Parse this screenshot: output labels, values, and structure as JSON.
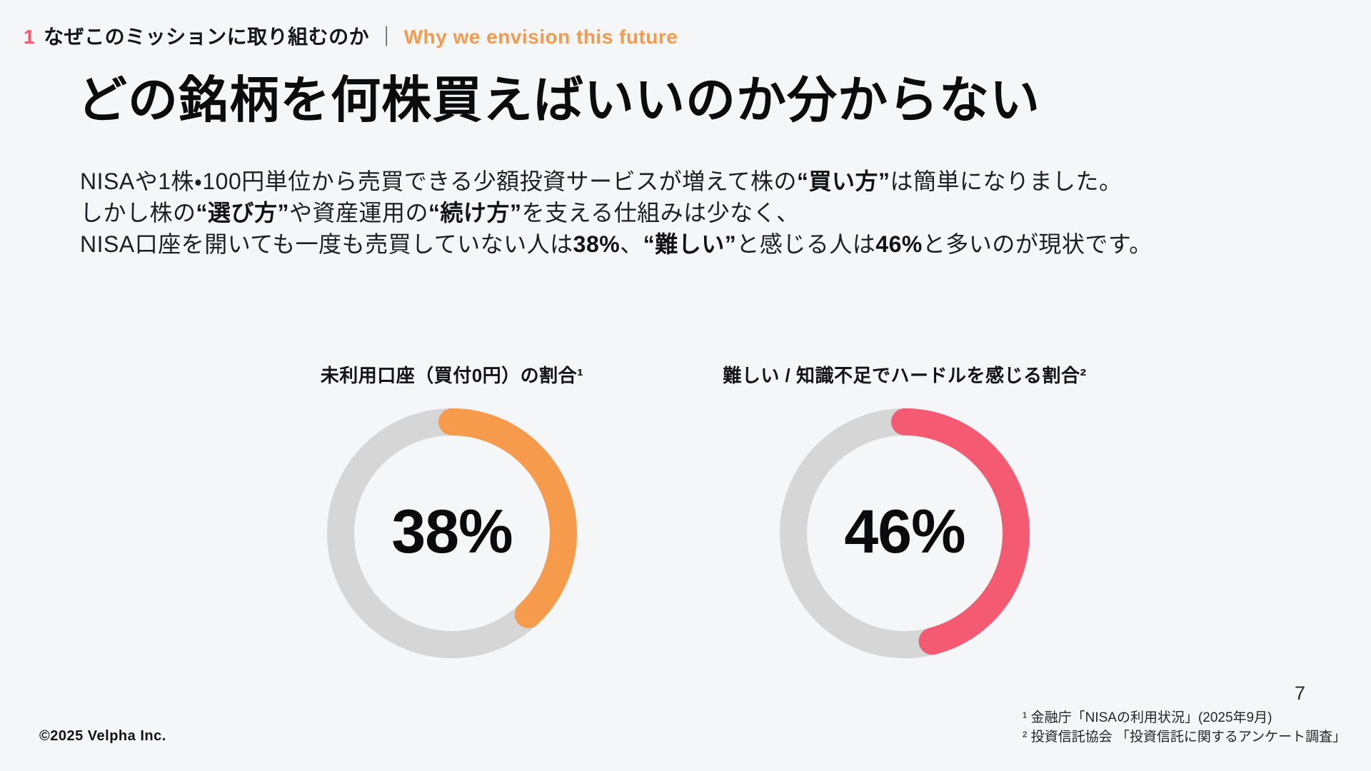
{
  "page": {
    "background_color": "#F5F6F8",
    "page_number": "7"
  },
  "header": {
    "section_number": "1",
    "title_ja": "なぜこのミッションに取り組むのか",
    "divider": "｜",
    "title_en": "Why we envision this future",
    "number_color": "#F4596E",
    "title_en_color": "#F39A4D"
  },
  "main": {
    "title": "どの銘柄を何株買えばいいのか分からない",
    "paragraph_lines": [
      [
        {
          "t": "NISAや1株・100円単位から売買できる少額投資サービスが増えて株の"
        },
        {
          "t": "“買い方”",
          "b": true
        },
        {
          "t": "は簡単になりました。"
        }
      ],
      [
        {
          "t": "しかし株の"
        },
        {
          "t": "“選び方”",
          "b": true
        },
        {
          "t": "や資産運用の"
        },
        {
          "t": "“続け方”",
          "b": true
        },
        {
          "t": "を支える仕組みは少なく、"
        }
      ],
      [
        {
          "t": "NISA口座を開いても一度も売買していない人は"
        },
        {
          "t": "38%",
          "b": true
        },
        {
          "t": "、"
        },
        {
          "t": "“難しい”",
          "b": true
        },
        {
          "t": "と感じる人は"
        },
        {
          "t": "46%",
          "b": true
        },
        {
          "t": "と多いのが現状です。"
        }
      ]
    ]
  },
  "chart_data": [
    {
      "type": "donut",
      "title": "未利用口座（買付0円）の割合¹",
      "value_pct": 38,
      "display_value": "38%",
      "arc_color": "#F69A4C",
      "track_color": "#D6D6D6",
      "arc_start": "top",
      "arc_direction": "clockwise"
    },
    {
      "type": "donut",
      "title": "難しい / 知識不足でハードルを感じる割合²",
      "value_pct": 46,
      "display_value": "46%",
      "arc_color": "#F45A72",
      "track_color": "#D6D6D6",
      "arc_start": "top",
      "arc_direction": "clockwise"
    }
  ],
  "footer": {
    "copyright": "©2025 Velpha Inc.",
    "footnotes": [
      "¹ 金融庁「NISAの利用状況」(2025年9月)",
      "² 投資信託協会 「投資信託に関するアンケート調査」"
    ]
  }
}
